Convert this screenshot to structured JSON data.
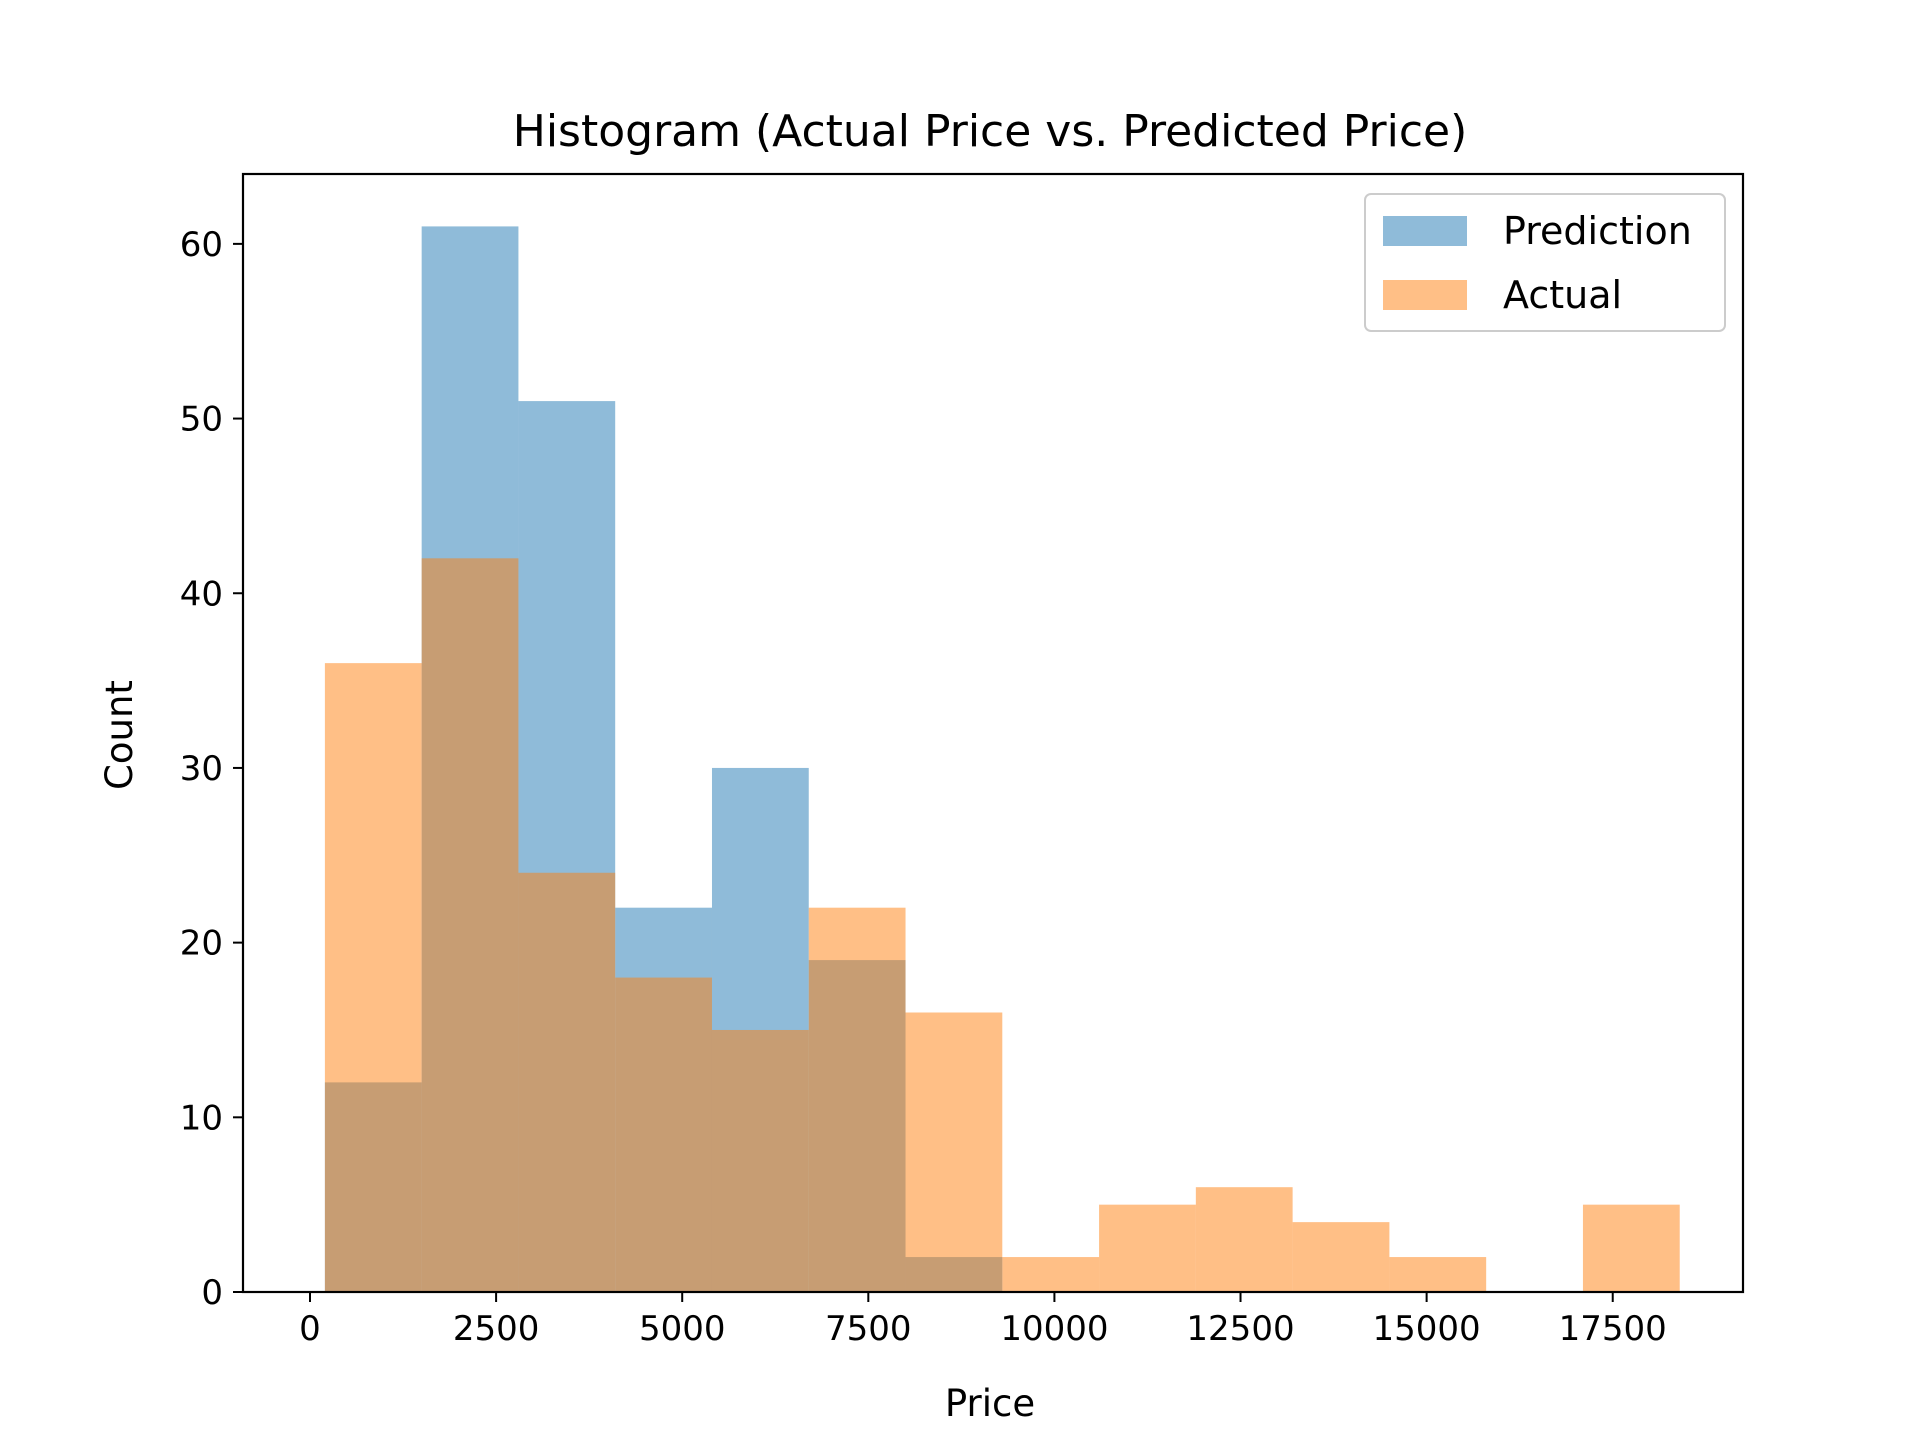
{
  "chart_data": {
    "type": "bar",
    "title": "Histogram (Actual Price vs. Predicted Price)",
    "xlabel": "Price",
    "ylabel": "Count",
    "xlim": [
      -900,
      19250
    ],
    "ylim": [
      0,
      64
    ],
    "xticks": [
      0,
      2500,
      5000,
      7500,
      10000,
      12500,
      15000,
      17500
    ],
    "yticks": [
      0,
      10,
      20,
      30,
      40,
      50,
      60
    ],
    "grid": false,
    "legend_position": "top-right",
    "series": [
      {
        "name": "Prediction",
        "color": "#1f77b4",
        "opacity": 0.5,
        "bins": [
          {
            "x0": 200,
            "x1": 1500,
            "count": 12
          },
          {
            "x0": 1500,
            "x1": 2800,
            "count": 61
          },
          {
            "x0": 2800,
            "x1": 4100,
            "count": 51
          },
          {
            "x0": 4100,
            "x1": 5400,
            "count": 22
          },
          {
            "x0": 5400,
            "x1": 6700,
            "count": 30
          },
          {
            "x0": 6700,
            "x1": 8000,
            "count": 19
          },
          {
            "x0": 8000,
            "x1": 9300,
            "count": 2
          }
        ]
      },
      {
        "name": "Actual",
        "color": "#ff7f0e",
        "opacity": 0.5,
        "bins": [
          {
            "x0": 200,
            "x1": 1500,
            "count": 36
          },
          {
            "x0": 1500,
            "x1": 2800,
            "count": 42
          },
          {
            "x0": 2800,
            "x1": 4100,
            "count": 24
          },
          {
            "x0": 4100,
            "x1": 5400,
            "count": 18
          },
          {
            "x0": 5400,
            "x1": 6700,
            "count": 15
          },
          {
            "x0": 6700,
            "x1": 8000,
            "count": 22
          },
          {
            "x0": 8000,
            "x1": 9300,
            "count": 16
          },
          {
            "x0": 9300,
            "x1": 10600,
            "count": 2
          },
          {
            "x0": 10600,
            "x1": 11900,
            "count": 5
          },
          {
            "x0": 11900,
            "x1": 13200,
            "count": 6
          },
          {
            "x0": 13200,
            "x1": 14500,
            "count": 4
          },
          {
            "x0": 14500,
            "x1": 15800,
            "count": 2
          },
          {
            "x0": 15800,
            "x1": 17100,
            "count": 0
          },
          {
            "x0": 17100,
            "x1": 18400,
            "count": 5
          }
        ]
      }
    ]
  }
}
